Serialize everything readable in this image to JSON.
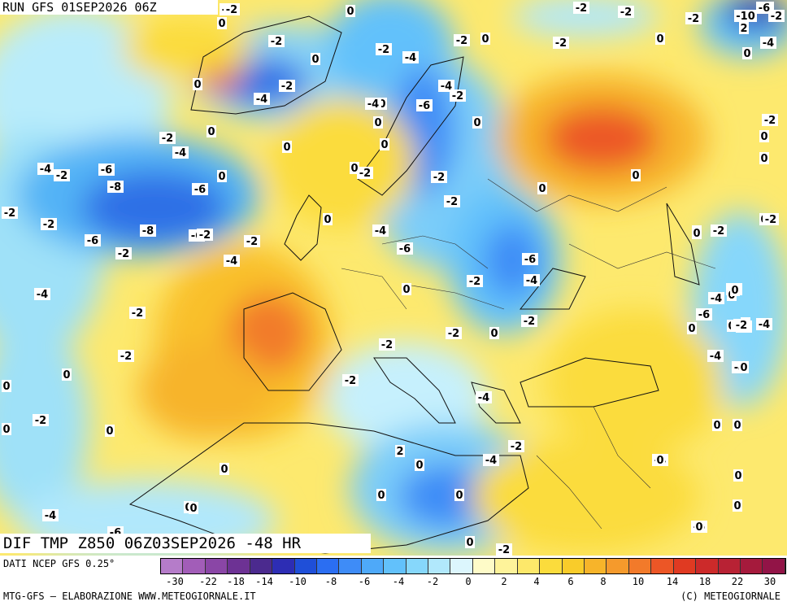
{
  "header": {
    "run": "RUN GFS 01SEP2026 06Z"
  },
  "chart": {
    "title": "DIF TMP Z850 06Z03SEP2026 -48 HR"
  },
  "legend": {
    "source": "DATI NCEP GFS 0.25°",
    "colors": [
      "#b57cc9",
      "#a25db8",
      "#8a46a6",
      "#6d3294",
      "#4b2a8e",
      "#2d2db4",
      "#1f4fd8",
      "#2b6ef2",
      "#3e8cf7",
      "#4ea9f9",
      "#62c1fb",
      "#86d7fb",
      "#b1e8fc",
      "#dcf6fd",
      "#fefbc8",
      "#fef39a",
      "#fde86a",
      "#fbdc3c",
      "#f9cc2a",
      "#f7b42a",
      "#f59a2c",
      "#f27a2a",
      "#ec5626",
      "#e03a22",
      "#cc2a2a",
      "#b82234",
      "#a51a3c",
      "#921447"
    ],
    "ticks": [
      "-30",
      "-22",
      "-18",
      "-14",
      "-10",
      "-8",
      "-6",
      "-4",
      "-2",
      "0",
      "2",
      "4",
      "6",
      "8",
      "10",
      "14",
      "18",
      "22",
      "30"
    ]
  },
  "footer": {
    "left": "MTG-GFS — ELABORAZIONE WWW.METEOGIORNALE.IT",
    "right": "(C) METEOGIORNALE"
  },
  "map_values": [
    "-6",
    "-2",
    "-2",
    "-2",
    "-2",
    "-4",
    "-2",
    "-10",
    "2",
    "-2",
    "-4",
    "0",
    "-2",
    "0",
    "-2",
    "0",
    "-2",
    "-4",
    "0",
    "-2",
    "0",
    "-2",
    "0",
    "0",
    "-4",
    "0",
    "0",
    "-6",
    "-4",
    "-4",
    "-6",
    "-2",
    "-2",
    "0",
    "0",
    "-2",
    "-4",
    "-2",
    "-6",
    "0",
    "0",
    "-2",
    "0",
    "-2",
    "-2",
    "0",
    "0",
    "0",
    "-4",
    "-2",
    "-6",
    "-8",
    "-6",
    "0",
    "0",
    "-2",
    "0",
    "0",
    "-2",
    "-4",
    "-6",
    "-8",
    "-6",
    "0",
    "-4",
    "0",
    "-2",
    "0",
    "-2",
    "-2",
    "-6",
    "-2",
    "-2",
    "-4",
    "-6",
    "-4",
    "-2",
    "0",
    "-2",
    "0",
    "-2",
    "0",
    "-4",
    "-4",
    "-4",
    "0",
    "0",
    "-4",
    "-6",
    "-2",
    "-2",
    "0",
    "0",
    "0",
    "-2",
    "0",
    "-2",
    "0",
    "0",
    "0",
    "0",
    "-4",
    "0",
    "0",
    "0",
    "0",
    "0",
    "-4",
    "0",
    "0",
    "2",
    "0",
    "-2",
    "-2",
    "-6",
    "-4",
    "0",
    "0",
    "-2",
    "-4",
    "0",
    "0",
    "0",
    "-2",
    "-2",
    "0",
    "0",
    "-6",
    "-2",
    "-4",
    "-4",
    "0",
    "0"
  ]
}
